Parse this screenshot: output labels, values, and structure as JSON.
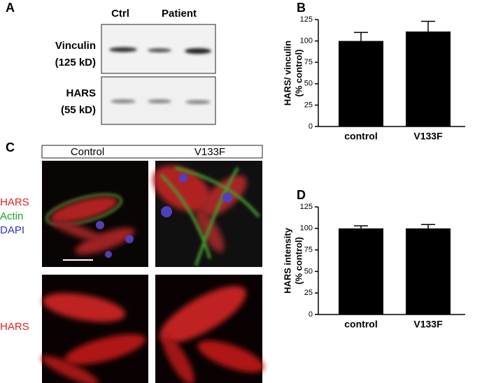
{
  "panel_a": {
    "panel": "A",
    "columns": [
      "Ctrl",
      "Patient"
    ],
    "rows": [
      [
        "Vinculin",
        "(125 kD)"
      ],
      [
        "HARS",
        "(55 kD)"
      ]
    ]
  },
  "panel_c": {
    "panel": "C",
    "columns": [
      "Control",
      "V133F"
    ],
    "stain_labels": [
      "HARS",
      "Actin",
      "DAPI"
    ],
    "bottom_label": "HARS"
  },
  "chart_data": [
    {
      "type": "bar",
      "panel": "B",
      "ylabel": [
        "HARS/ vinculin",
        "(% control)"
      ],
      "categories": [
        "control",
        "V133F"
      ],
      "values": [
        100,
        111
      ],
      "errors": [
        10,
        12
      ],
      "color": "#000000",
      "ylim": [
        0,
        125
      ],
      "yticks": [
        0,
        25,
        50,
        75,
        100,
        125
      ]
    },
    {
      "type": "bar",
      "panel": "D",
      "ylabel": [
        "HARS intensity",
        "(% control)"
      ],
      "categories": [
        "control",
        "V133F"
      ],
      "values": [
        100,
        100
      ],
      "errors": [
        3,
        4.5
      ],
      "color": "#000000",
      "ylim": [
        0,
        125
      ],
      "yticks": [
        0,
        25,
        50,
        75,
        100,
        125
      ]
    }
  ]
}
